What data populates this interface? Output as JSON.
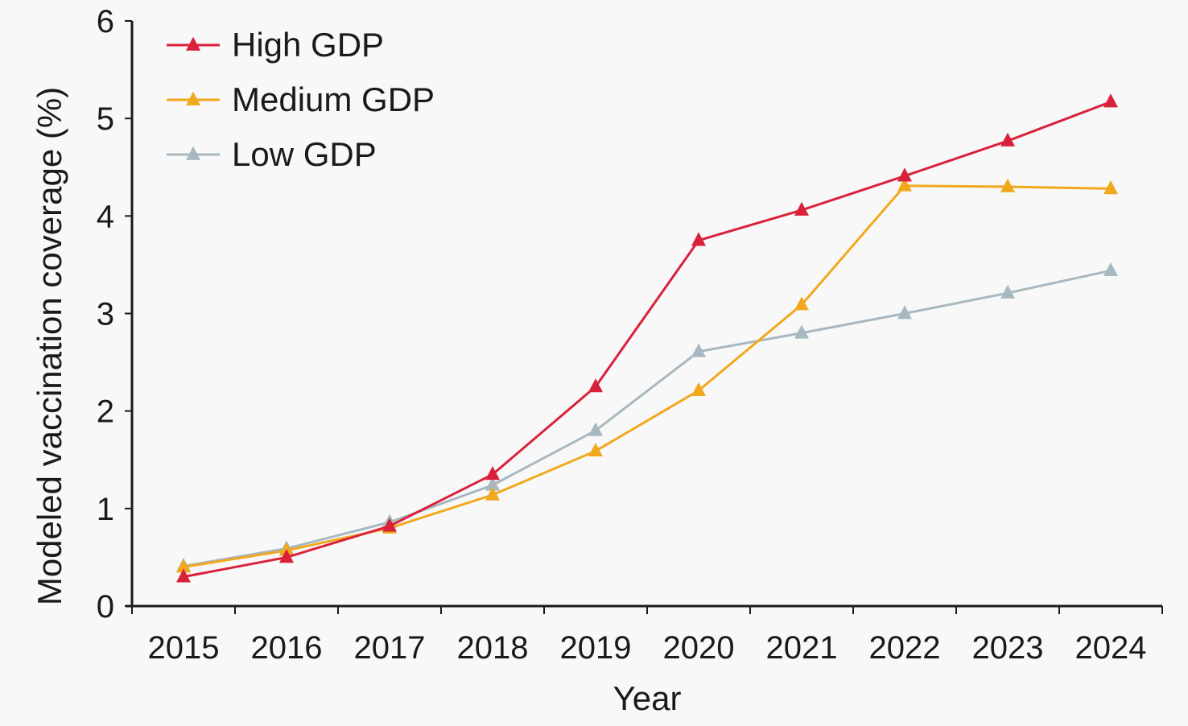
{
  "chart_data": {
    "type": "line",
    "title": "",
    "xlabel": "Year",
    "ylabel": "Modeled vaccination coverage (%)",
    "x": [
      "2015",
      "2016",
      "2017",
      "2018",
      "2019",
      "2020",
      "2021",
      "2022",
      "2023",
      "2024"
    ],
    "ylim": [
      0,
      6
    ],
    "yticks": [
      "0",
      "1",
      "2",
      "3",
      "4",
      "5",
      "6"
    ],
    "grid": false,
    "legend_position": "top-left",
    "marker": "triangle",
    "series": [
      {
        "name": "High GDP",
        "color": "#d9213a",
        "values": [
          0.3,
          0.5,
          0.82,
          1.35,
          2.25,
          3.75,
          4.06,
          4.41,
          4.77,
          5.17
        ]
      },
      {
        "name": "Medium GDP",
        "color": "#f2a81d",
        "values": [
          0.4,
          0.57,
          0.8,
          1.14,
          1.59,
          2.21,
          3.09,
          4.31,
          4.3,
          4.28
        ]
      },
      {
        "name": "Low GDP",
        "color": "#a8b8c0",
        "values": [
          0.41,
          0.59,
          0.86,
          1.24,
          1.8,
          2.61,
          2.8,
          3.0,
          3.21,
          3.44
        ]
      }
    ]
  }
}
